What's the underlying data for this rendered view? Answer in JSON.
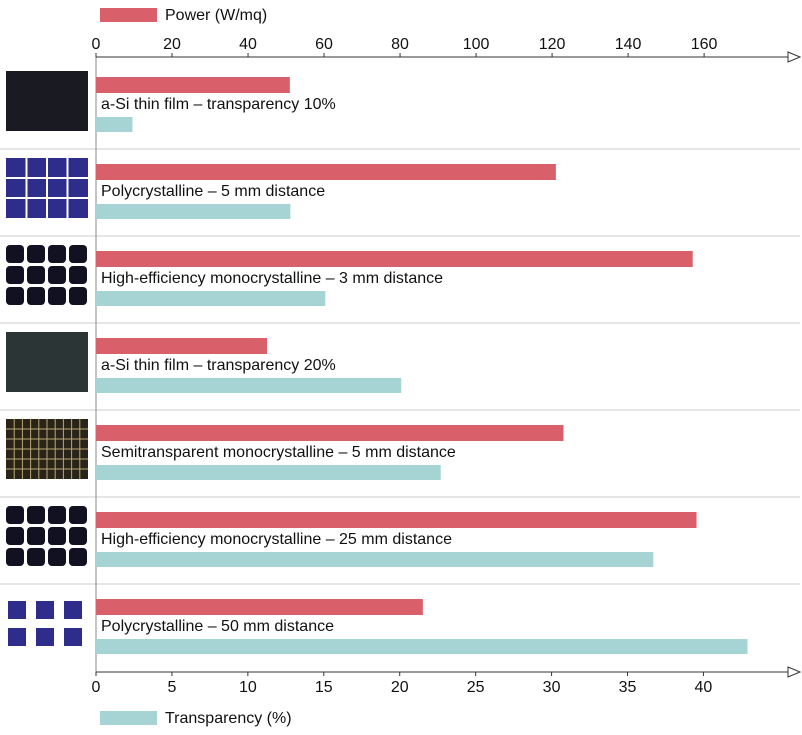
{
  "chart_data": {
    "type": "bar",
    "orientation": "horizontal",
    "categories": [
      "a-Si thin film – transparency 10%",
      "Polycrystalline – 5 mm distance",
      "High-efficiency monocrystalline – 3 mm distance",
      "a-Si thin film – transparency 20%",
      "Semitransparent monocrystalline – 5 mm distance",
      "High-efficiency monocrystalline – 25 mm distance",
      "Polycrystalline – 50 mm distance"
    ],
    "series": [
      {
        "name": "Power (W/mq)",
        "color": "#d9606a",
        "values": [
          51,
          121,
          157,
          45,
          123,
          158,
          86
        ]
      },
      {
        "name": "Transparency (%)",
        "color": "#a6d3d3",
        "axis": "x2",
        "values": [
          2.4,
          12.8,
          15.1,
          20.1,
          22.7,
          36.7,
          42.9
        ]
      }
    ],
    "xlim": [
      0,
      182.6
    ],
    "xticks": [
      0,
      20,
      40,
      60,
      80,
      100,
      120,
      140,
      160
    ],
    "x2lim": [
      0,
      45.7
    ],
    "x2ticks": [
      0,
      5,
      10,
      15,
      20,
      25,
      30,
      35,
      40
    ]
  }
}
